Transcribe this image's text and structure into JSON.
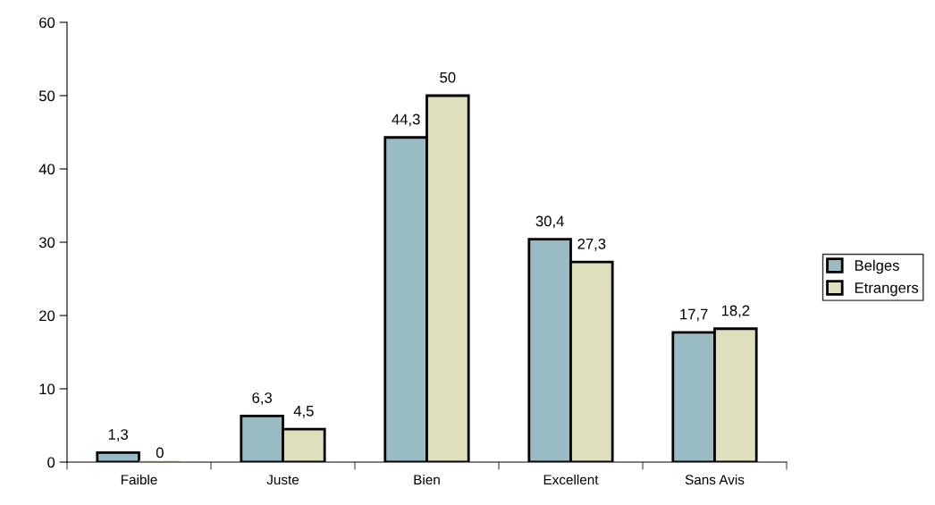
{
  "chart_data": {
    "type": "bar",
    "categories": [
      "Faible",
      "Juste",
      "Bien",
      "Excellent",
      "Sans Avis"
    ],
    "series": [
      {
        "name": "Belges",
        "color": "#99bbc4",
        "values": [
          1.3,
          6.3,
          44.3,
          30.4,
          17.7
        ],
        "value_labels": [
          "1,3",
          "6,3",
          "44,3",
          "30,4",
          "17,7"
        ]
      },
      {
        "name": "Etrangers",
        "color": "#dfdfbd",
        "values": [
          0,
          4.5,
          50,
          27.3,
          18.2
        ],
        "value_labels": [
          "0",
          "4,5",
          "50",
          "27,3",
          "18,2"
        ]
      }
    ],
    "ylim": [
      0,
      60
    ],
    "yticks": [
      0,
      10,
      20,
      30,
      40,
      50,
      60
    ],
    "grid": false,
    "legend": "right"
  }
}
